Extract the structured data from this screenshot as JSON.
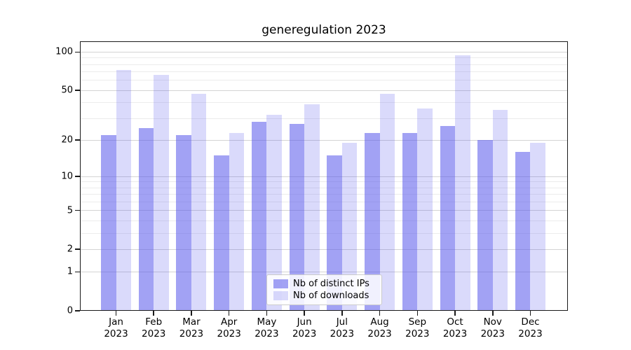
{
  "chart_data": {
    "type": "bar",
    "title": "generegulation 2023",
    "categories": [
      "Jan",
      "Feb",
      "Mar",
      "Apr",
      "May",
      "Jun",
      "Jul",
      "Aug",
      "Sep",
      "Oct",
      "Nov",
      "Dec"
    ],
    "category_year": "2023",
    "series": [
      {
        "name": "Nb of distinct IPs",
        "color_hex": "#a2a2f3",
        "fill": "rgba(85,85,235,0.55)",
        "values": [
          22,
          25,
          22,
          15,
          28,
          27,
          15,
          23,
          23,
          26,
          20,
          16
        ]
      },
      {
        "name": "Nb of downloads",
        "color_hex": "#d9d9fa",
        "fill": "rgba(85,85,235,0.22)",
        "values": [
          72,
          66,
          47,
          23,
          32,
          39,
          19,
          47,
          36,
          95,
          35,
          19
        ]
      }
    ],
    "yscale": "log1p",
    "ymax": 121.5,
    "yticks": [
      0,
      1,
      2,
      5,
      10,
      20,
      50,
      100
    ],
    "yticklabels": [
      "0",
      "1",
      "2",
      "5",
      "10",
      "20",
      "50",
      "100"
    ],
    "minor_yticks": [
      3,
      4,
      6,
      7,
      8,
      9,
      30,
      40,
      60,
      70,
      80,
      90
    ],
    "grid": true,
    "legend_position": "lower center"
  }
}
